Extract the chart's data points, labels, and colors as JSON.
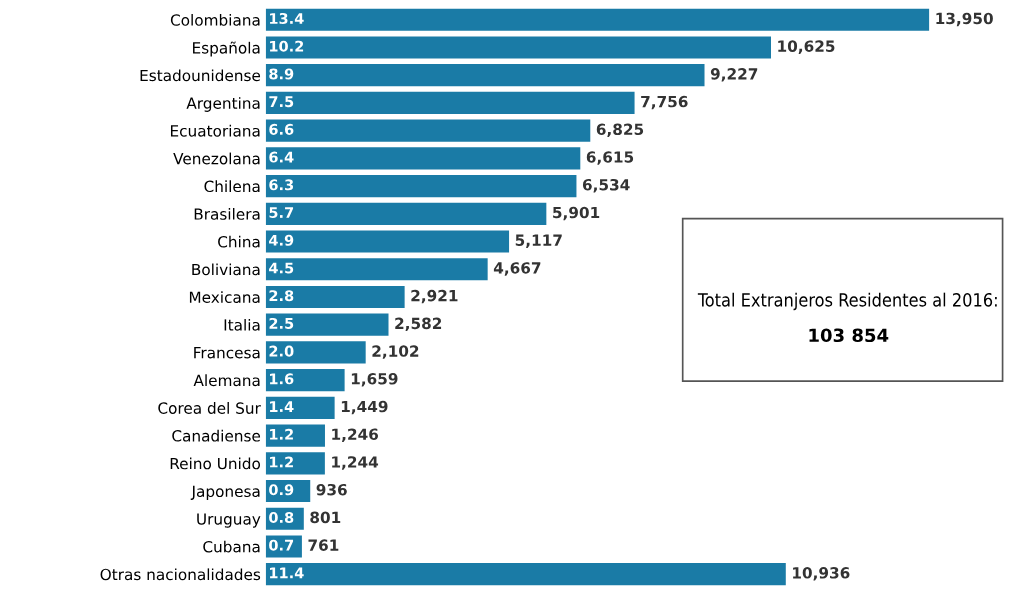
{
  "chart_data": {
    "type": "bar",
    "orientation": "horizontal",
    "categories": [
      "Colombiana",
      "Española",
      "Estadounidense",
      "Argentina",
      "Ecuatoriana",
      "Venezolana",
      "Chilena",
      "Brasilera",
      "China",
      "Boliviana",
      "Mexicana",
      "Italia",
      "Francesa",
      "Alemana",
      "Corea del Sur",
      "Canadiense",
      "Reino Unido",
      "Japonesa",
      "Uruguay",
      "Cubana",
      "Otras nacionalidades"
    ],
    "values": [
      13950,
      10625,
      9227,
      7756,
      6825,
      6615,
      6534,
      5901,
      5117,
      4667,
      2921,
      2582,
      2102,
      1659,
      1449,
      1246,
      1244,
      936,
      801,
      761,
      10936
    ],
    "value_labels": [
      "13,950",
      "10,625",
      "9,227",
      "7,756",
      "6,825",
      "6,615",
      "6,534",
      "5,901",
      "5,117",
      "4,667",
      "2,921",
      "2,582",
      "2,102",
      "1,659",
      "1,449",
      "1,246",
      "1,244",
      "936",
      "801",
      "761",
      "10,936"
    ],
    "color": "#1a7ba6",
    "tick_labels": "y",
    "grid": false,
    "annotations": [
      {
        "text": "13.4",
        "y": "Colombiana"
      },
      {
        "text": "10.2",
        "y": "Española"
      },
      {
        "text": "8.9",
        "y": "Estadounidense"
      },
      {
        "text": "7.5",
        "y": "Argentina"
      },
      {
        "text": "6.6",
        "y": "Ecuatoriana"
      },
      {
        "text": "6.4",
        "y": "Venezolana"
      },
      {
        "text": "6.3",
        "y": "Chilena"
      },
      {
        "text": "5.7",
        "y": "Brasilera"
      },
      {
        "text": "4.9",
        "y": "China"
      },
      {
        "text": "4.5",
        "y": "Boliviana"
      },
      {
        "text": "2.8",
        "y": "Mexicana"
      },
      {
        "text": "2.5",
        "y": "Italia"
      },
      {
        "text": "2.0",
        "y": "Francesa"
      },
      {
        "text": "1.6",
        "y": "Alemana"
      },
      {
        "text": "1.4",
        "y": "Corea del Sur"
      },
      {
        "text": "1.2",
        "y": "Canadiense"
      },
      {
        "text": "1.2",
        "y": "Reino Unido"
      },
      {
        "text": "0.9",
        "y": "Japonesa"
      },
      {
        "text": "0.8",
        "y": "Uruguay"
      },
      {
        "text": "0.7",
        "y": "Cubana"
      },
      {
        "text": "11.4",
        "y": "Otras nacionalidades"
      },
      "Total Extranjeros Residentes al 2016:",
      "103 854"
    ]
  }
}
